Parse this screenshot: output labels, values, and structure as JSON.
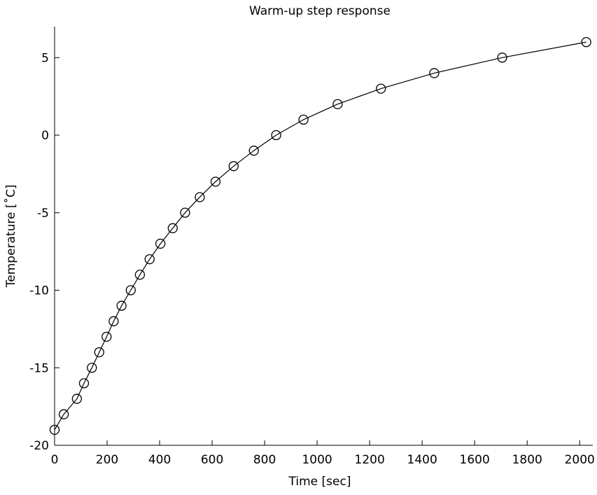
{
  "chart_data": {
    "type": "line",
    "title": "Warm-up step response",
    "xlabel": "Time [sec]",
    "ylabel": "Temperature [˚C]",
    "xlim": [
      0,
      2050
    ],
    "ylim": [
      -20,
      7
    ],
    "xticks": [
      0,
      200,
      400,
      600,
      800,
      1000,
      1200,
      1400,
      1600,
      1800,
      2000
    ],
    "yticks": [
      -20,
      -15,
      -10,
      -5,
      0,
      5
    ],
    "grid": false,
    "legend": "none",
    "line_color": "#000000",
    "marker": "circle",
    "series": [
      {
        "x": [
          0,
          35,
          85,
          112,
          142,
          170,
          198,
          225,
          255,
          290,
          325,
          362,
          403,
          450,
          497,
          553,
          613,
          682,
          759,
          844,
          948,
          1078,
          1243,
          1446,
          1705,
          2025
        ],
        "y": [
          -19,
          -18,
          -17,
          -16,
          -15,
          -14,
          -13,
          -12,
          -11,
          -10,
          -9,
          -8,
          -7,
          -6,
          -5,
          -4,
          -3,
          -2,
          -1,
          0,
          1,
          2,
          3,
          4,
          5,
          6
        ]
      }
    ]
  }
}
